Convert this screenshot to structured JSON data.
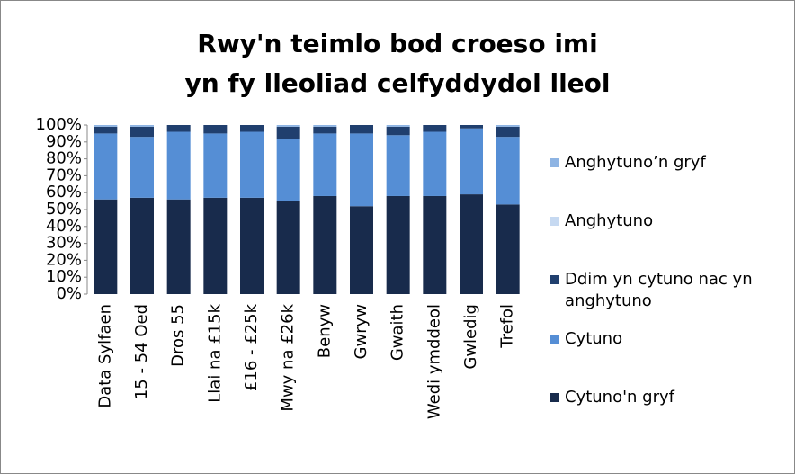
{
  "chart_data": {
    "type": "stacked_bar_100",
    "title": [
      "Rwy'n teimlo bod croeso imi",
      "yn fy lleoliad celfyddydol lleol"
    ],
    "categories": [
      "Data Sylfaen",
      "15 - 54 Oed",
      "Dros 55",
      "Llai na £15k",
      "£16 - £25k",
      "Mwy na £26k",
      "Benyw",
      "Gwryw",
      "Gwaith",
      "Wedi ymddeol",
      "Gwledig",
      "Trefol"
    ],
    "series": [
      {
        "name": "Cytuno'n gryf",
        "color": "#182b4c",
        "values": [
          56,
          57,
          56,
          57,
          57,
          55,
          58,
          52,
          58,
          58,
          59,
          53
        ]
      },
      {
        "name": "Cytuno",
        "color": "#558ed5",
        "values": [
          39,
          36,
          40,
          38,
          39,
          37,
          37,
          43,
          36,
          38,
          39,
          40
        ]
      },
      {
        "name": "Ddim yn cytuno nac yn anghytuno",
        "color": "#203f6e",
        "values": [
          4,
          6,
          4,
          5,
          4,
          7,
          4,
          5,
          5,
          4,
          2,
          6
        ]
      },
      {
        "name": "Anghytuno",
        "color": "#c6d9f1",
        "values": [
          0,
          0,
          0,
          0,
          0,
          0,
          0,
          0,
          0,
          0,
          0,
          0
        ]
      },
      {
        "name": "Anghytuno’n gryf",
        "color": "#8eb4e3",
        "values": [
          1,
          1,
          0,
          0,
          0,
          1,
          1,
          0,
          1,
          0,
          0,
          1
        ]
      }
    ],
    "ylim": [
      0,
      100
    ],
    "yticks": [
      {
        "value": 0,
        "label": "0%"
      },
      {
        "value": 10,
        "label": "10%"
      },
      {
        "value": 20,
        "label": "20%"
      },
      {
        "value": 30,
        "label": "30%"
      },
      {
        "value": 40,
        "label": "40%"
      },
      {
        "value": 50,
        "label": "50%"
      },
      {
        "value": 60,
        "label": "60%"
      },
      {
        "value": 70,
        "label": "70%"
      },
      {
        "value": 80,
        "label": "80%"
      },
      {
        "value": 90,
        "label": "90%"
      },
      {
        "value": 100,
        "label": "100%"
      }
    ],
    "legend": "right"
  }
}
